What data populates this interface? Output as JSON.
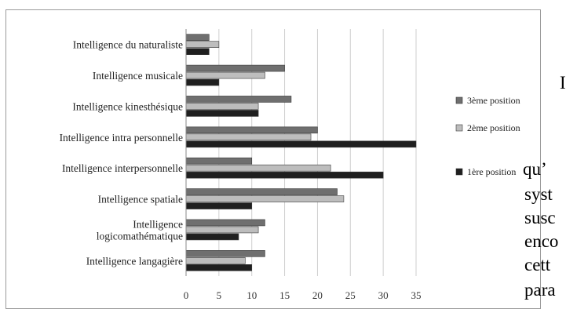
{
  "chart_data": {
    "type": "bar",
    "orientation": "horizontal",
    "categories": [
      [
        "Intelligence du naturaliste"
      ],
      [
        "Intelligence musicale"
      ],
      [
        "Intelligence kinesthésique"
      ],
      [
        "Intelligence intra personnelle"
      ],
      [
        "Intelligence interpersonnelle"
      ],
      [
        "Intelligence spatiale"
      ],
      [
        "Intelligence",
        "logicomathématique"
      ],
      [
        "Intelligence langagière"
      ]
    ],
    "series": [
      {
        "name": "3ème position",
        "color": "#6f6f6f",
        "values": [
          3.5,
          15,
          16,
          20,
          10,
          23,
          12,
          12
        ]
      },
      {
        "name": "2ème position",
        "color": "#bdbdbd",
        "values": [
          5,
          12,
          11,
          19,
          22,
          24,
          11,
          9
        ]
      },
      {
        "name": "1ère position",
        "color": "#1f1f1f",
        "values": [
          3.5,
          5,
          11,
          35,
          30,
          10,
          8,
          10
        ]
      }
    ],
    "xlim": [
      0,
      35
    ],
    "xticks": [
      0,
      5,
      10,
      15,
      20,
      25,
      30,
      35
    ],
    "grid": "vertical",
    "legend_position": "right"
  },
  "background_text": [
    {
      "text": "I"
    },
    {
      "text": "qu’"
    },
    {
      "text": "syst"
    },
    {
      "text": "susc"
    },
    {
      "text": "enco"
    },
    {
      "text": "cett"
    },
    {
      "text": "para"
    }
  ]
}
